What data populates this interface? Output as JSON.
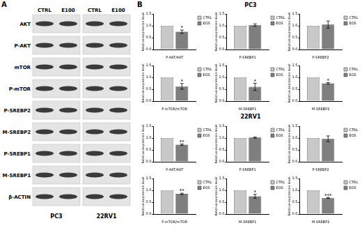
{
  "figure": {
    "panel_labels": [
      "A",
      "B"
    ],
    "section_titles": [
      "PC3",
      "22RV1"
    ],
    "blot": {
      "column_headers": [
        "CTRL",
        "E100"
      ],
      "cell_lines": [
        "PC3",
        "22RV1"
      ],
      "rows": [
        "AKT",
        "P-AKT",
        "mTOR",
        "P-mTOR",
        "P-SREBP2",
        "M-SREBP2",
        "P-SREBP1",
        "M-SREBP1",
        "β-ACTIN"
      ]
    }
  },
  "chart_data": [
    {
      "type": "bar",
      "categories": [
        "P-AKT/AKT"
      ],
      "ylabel": "Relative expression level",
      "ylim": [
        0,
        1.5
      ],
      "yticks": [
        {
          "value": 0,
          "label": "0.0"
        },
        {
          "value": 0.5,
          "label": "0.5"
        },
        {
          "value": 1,
          "label": "1.0"
        },
        {
          "value": 1.5,
          "label": "1.5"
        }
      ],
      "grid": false,
      "legend": "right",
      "series": [
        {
          "name": "CTRL",
          "color": "#c8c8c8",
          "values": [
            1
          ]
        },
        {
          "name": "EOS",
          "color": "#7f7f7f",
          "values": [
            0.75
          ],
          "errors": [
            0.07
          ]
        }
      ],
      "annotations": [
        {
          "text": "*",
          "series": "EOS"
        }
      ]
    },
    {
      "type": "bar",
      "categories": [
        "P-SREBP1"
      ],
      "ylabel": "Relative expression level",
      "ylim": [
        0,
        1.5
      ],
      "yticks": [
        {
          "value": 0,
          "label": "0.0"
        },
        {
          "value": 0.5,
          "label": "0.5"
        },
        {
          "value": 1,
          "label": "1.0"
        },
        {
          "value": 1.5,
          "label": "1.5"
        }
      ],
      "grid": false,
      "legend": "right",
      "series": [
        {
          "name": "CTRL",
          "color": "#c8c8c8",
          "values": [
            1
          ]
        },
        {
          "name": "EOS",
          "color": "#7f7f7f",
          "values": [
            1.03
          ],
          "errors": [
            0.05
          ]
        }
      ]
    },
    {
      "type": "bar",
      "categories": [
        "P-SREBP2"
      ],
      "ylabel": "Relative expression level",
      "ylim": [
        0,
        1.5
      ],
      "yticks": [
        {
          "value": 0,
          "label": "0.0"
        },
        {
          "value": 0.5,
          "label": "0.5"
        },
        {
          "value": 1,
          "label": "1.0"
        },
        {
          "value": 1.5,
          "label": "1.5"
        }
      ],
      "grid": false,
      "legend": "right",
      "series": [
        {
          "name": "CTRL",
          "color": "#c8c8c8",
          "values": [
            1
          ]
        },
        {
          "name": "EOS",
          "color": "#7f7f7f",
          "values": [
            1.05
          ],
          "errors": [
            0.15
          ]
        }
      ]
    },
    {
      "type": "bar",
      "categories": [
        "P-mTOR/mTOR"
      ],
      "ylabel": "Relative expression level",
      "ylim": [
        0,
        1.5
      ],
      "yticks": [
        {
          "value": 0,
          "label": "0.0"
        },
        {
          "value": 0.5,
          "label": "0.5"
        },
        {
          "value": 1,
          "label": "1.0"
        },
        {
          "value": 1.5,
          "label": "1.5"
        }
      ],
      "grid": false,
      "legend": "right",
      "series": [
        {
          "name": "CTRL",
          "color": "#c8c8c8",
          "values": [
            1
          ]
        },
        {
          "name": "EOS",
          "color": "#7f7f7f",
          "values": [
            0.62
          ],
          "errors": [
            0.12
          ]
        }
      ],
      "annotations": [
        {
          "text": "*",
          "series": "EOS"
        }
      ]
    },
    {
      "type": "bar",
      "categories": [
        "M-SREBP1"
      ],
      "ylabel": "Relative expression level",
      "ylim": [
        0,
        1.5
      ],
      "yticks": [
        {
          "value": 0,
          "label": "0.0"
        },
        {
          "value": 0.5,
          "label": "0.5"
        },
        {
          "value": 1,
          "label": "1.0"
        },
        {
          "value": 1.5,
          "label": "1.5"
        }
      ],
      "grid": false,
      "legend": "right",
      "series": [
        {
          "name": "CTRL",
          "color": "#c8c8c8",
          "values": [
            1
          ]
        },
        {
          "name": "EOS",
          "color": "#7f7f7f",
          "values": [
            0.6
          ],
          "errors": [
            0.15
          ]
        }
      ],
      "annotations": [
        {
          "text": "*",
          "series": "EOS"
        }
      ]
    },
    {
      "type": "bar",
      "categories": [
        "M-SREBP2"
      ],
      "ylabel": "Relative expression level",
      "ylim": [
        0,
        1.5
      ],
      "yticks": [
        {
          "value": 0,
          "label": "0.0"
        },
        {
          "value": 0.5,
          "label": "0.5"
        },
        {
          "value": 1,
          "label": "1.0"
        },
        {
          "value": 1.5,
          "label": "1.5"
        }
      ],
      "grid": false,
      "legend": "right",
      "series": [
        {
          "name": "CTRL",
          "color": "#c8c8c8",
          "values": [
            1
          ]
        },
        {
          "name": "EOS",
          "color": "#7f7f7f",
          "values": [
            0.75
          ],
          "errors": [
            0.03
          ]
        }
      ],
      "annotations": [
        {
          "text": "*",
          "series": "EOS"
        }
      ]
    },
    {
      "type": "bar",
      "categories": [
        "P-AKT/AKT"
      ],
      "ylabel": "Relative expression level",
      "ylim": [
        0,
        1.5
      ],
      "yticks": [
        {
          "value": 0,
          "label": "0.0"
        },
        {
          "value": 0.5,
          "label": "0.5"
        },
        {
          "value": 1,
          "label": "1.0"
        },
        {
          "value": 1.5,
          "label": "1.5"
        }
      ],
      "grid": false,
      "legend": "right",
      "series": [
        {
          "name": "CTRL",
          "color": "#c8c8c8",
          "values": [
            1
          ]
        },
        {
          "name": "EOS",
          "color": "#7f7f7f",
          "values": [
            0.72
          ],
          "errors": [
            0.03
          ]
        }
      ],
      "annotations": [
        {
          "text": "**",
          "series": "EOS"
        }
      ]
    },
    {
      "type": "bar",
      "categories": [
        "P-SREBP1"
      ],
      "ylabel": "Relative expression level",
      "ylim": [
        0,
        1.5
      ],
      "yticks": [
        {
          "value": 0,
          "label": "0.0"
        },
        {
          "value": 0.5,
          "label": "0.5"
        },
        {
          "value": 1,
          "label": "1.0"
        },
        {
          "value": 1.5,
          "label": "1.5"
        }
      ],
      "grid": false,
      "legend": "right",
      "series": [
        {
          "name": "CTRL",
          "color": "#c8c8c8",
          "values": [
            1
          ]
        },
        {
          "name": "EOS",
          "color": "#7f7f7f",
          "values": [
            1.02
          ],
          "errors": [
            0.02
          ]
        }
      ]
    },
    {
      "type": "bar",
      "categories": [
        "P-SREBP2"
      ],
      "ylabel": "Relative expression level",
      "ylim": [
        0,
        1.5
      ],
      "yticks": [
        {
          "value": 0,
          "label": "0.0"
        },
        {
          "value": 0.5,
          "label": "0.5"
        },
        {
          "value": 1,
          "label": "1.0"
        },
        {
          "value": 1.5,
          "label": "1.5"
        }
      ],
      "grid": false,
      "legend": "right",
      "series": [
        {
          "name": "CTRL",
          "color": "#c8c8c8",
          "values": [
            1
          ]
        },
        {
          "name": "EOS",
          "color": "#7f7f7f",
          "values": [
            0.97
          ],
          "errors": [
            0.12
          ]
        }
      ]
    },
    {
      "type": "bar",
      "categories": [
        "P-mTOR/mTOR"
      ],
      "ylabel": "Relative expression level",
      "ylim": [
        0,
        1.5
      ],
      "yticks": [
        {
          "value": 0,
          "label": "0.0"
        },
        {
          "value": 0.5,
          "label": "0.5"
        },
        {
          "value": 1,
          "label": "1.0"
        },
        {
          "value": 1.5,
          "label": "1.5"
        }
      ],
      "grid": false,
      "legend": "right",
      "series": [
        {
          "name": "CTRL",
          "color": "#c8c8c8",
          "values": [
            1
          ]
        },
        {
          "name": "EOS",
          "color": "#7f7f7f",
          "values": [
            0.85
          ],
          "errors": [
            0.03
          ]
        }
      ],
      "annotations": [
        {
          "text": "**",
          "series": "EOS"
        }
      ]
    },
    {
      "type": "bar",
      "categories": [
        "M-SREBP1"
      ],
      "ylabel": "Relative expression level",
      "ylim": [
        0,
        1.5
      ],
      "yticks": [
        {
          "value": 0,
          "label": "0.0"
        },
        {
          "value": 0.5,
          "label": "0.5"
        },
        {
          "value": 1,
          "label": "1.0"
        },
        {
          "value": 1.5,
          "label": "1.5"
        }
      ],
      "grid": false,
      "legend": "right",
      "series": [
        {
          "name": "CTRL",
          "color": "#c8c8c8",
          "values": [
            1
          ]
        },
        {
          "name": "EOS",
          "color": "#7f7f7f",
          "values": [
            0.75
          ],
          "errors": [
            0.08
          ]
        }
      ],
      "annotations": [
        {
          "text": "*",
          "series": "EOS"
        }
      ]
    },
    {
      "type": "bar",
      "categories": [
        "M-SREBP2"
      ],
      "ylabel": "Relative expression level",
      "ylim": [
        0,
        1.5
      ],
      "yticks": [
        {
          "value": 0,
          "label": "0.0"
        },
        {
          "value": 0.5,
          "label": "0.5"
        },
        {
          "value": 1,
          "label": "1.0"
        },
        {
          "value": 1.5,
          "label": "1.5"
        }
      ],
      "grid": false,
      "legend": "right",
      "series": [
        {
          "name": "CTRL",
          "color": "#c8c8c8",
          "values": [
            1
          ]
        },
        {
          "name": "EOS",
          "color": "#7f7f7f",
          "values": [
            0.68
          ],
          "errors": [
            0.02
          ]
        }
      ],
      "annotations": [
        {
          "text": "***",
          "series": "EOS"
        }
      ]
    }
  ]
}
